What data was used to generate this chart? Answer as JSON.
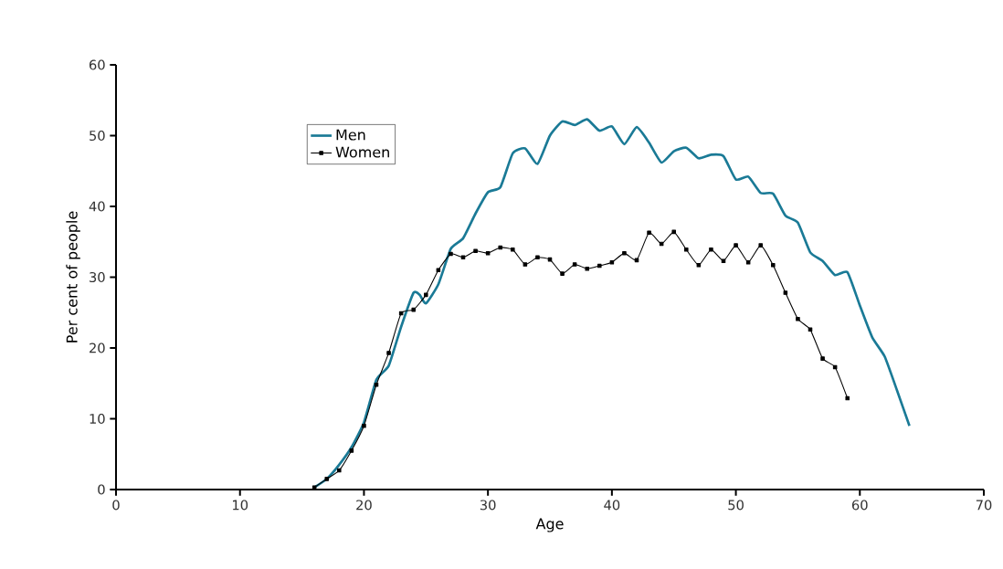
{
  "chart_data": {
    "type": "line",
    "xlabel": "Age",
    "ylabel": "Per cent of people",
    "xlim": [
      0,
      70
    ],
    "xticks": [
      0,
      10,
      20,
      30,
      40,
      50,
      60,
      70
    ],
    "ylim": [
      0,
      60
    ],
    "yticks": [
      0,
      10,
      20,
      30,
      40,
      50,
      60
    ],
    "grid": false,
    "legend": "top left",
    "series": [
      {
        "name": "Men",
        "color": "#1a7a96",
        "marker": "none",
        "x": [
          16,
          17,
          18,
          19,
          20,
          21,
          22,
          23,
          24,
          24.5,
          25,
          26,
          27,
          28,
          29,
          30,
          31,
          32,
          33,
          34,
          35,
          36,
          37,
          38,
          39,
          40,
          41,
          42,
          43,
          44,
          45,
          46,
          47,
          48,
          49,
          50,
          51,
          52,
          53,
          54,
          55,
          56,
          57,
          58,
          59,
          60,
          61,
          62,
          63,
          64
        ],
        "values": [
          0.3,
          1.5,
          3.5,
          6,
          9.5,
          15.5,
          17.5,
          23,
          27.8,
          27.5,
          26.3,
          29,
          34,
          35.5,
          39,
          42,
          42.7,
          47.5,
          48.2,
          46,
          50,
          52,
          51.5,
          52.3,
          50.7,
          51.3,
          48.8,
          51.2,
          49,
          46.2,
          47.8,
          48.3,
          46.8,
          47.3,
          47.1,
          43.8,
          44.2,
          41.9,
          41.8,
          38.7,
          37.7,
          33.5,
          32.3,
          30.3,
          30.7,
          26,
          21.5,
          18.8,
          14,
          9
        ]
      },
      {
        "name": "Women",
        "color": "#000000",
        "marker": "square",
        "x": [
          16,
          17,
          18,
          19,
          20,
          21,
          22,
          23,
          24,
          25,
          26,
          27,
          28,
          29,
          30,
          31,
          32,
          33,
          34,
          35,
          36,
          37,
          38,
          39,
          40,
          41,
          42,
          43,
          44,
          45,
          46,
          47,
          48,
          49,
          50,
          51,
          52,
          53,
          54,
          55,
          56,
          57,
          58,
          59
        ],
        "values": [
          0.3,
          1.5,
          2.7,
          5.5,
          9,
          14.8,
          19.3,
          24.9,
          25.4,
          27.5,
          31,
          33.3,
          32.8,
          33.7,
          33.4,
          34.2,
          33.9,
          31.8,
          32.8,
          32.5,
          30.5,
          31.8,
          31.2,
          31.6,
          32.1,
          33.4,
          32.4,
          36.3,
          34.7,
          36.4,
          33.9,
          31.7,
          33.9,
          32.3,
          34.5,
          32.1,
          34.5,
          31.7,
          27.8,
          24.1,
          22.6,
          18.5,
          17.3,
          12.9
        ]
      }
    ]
  }
}
